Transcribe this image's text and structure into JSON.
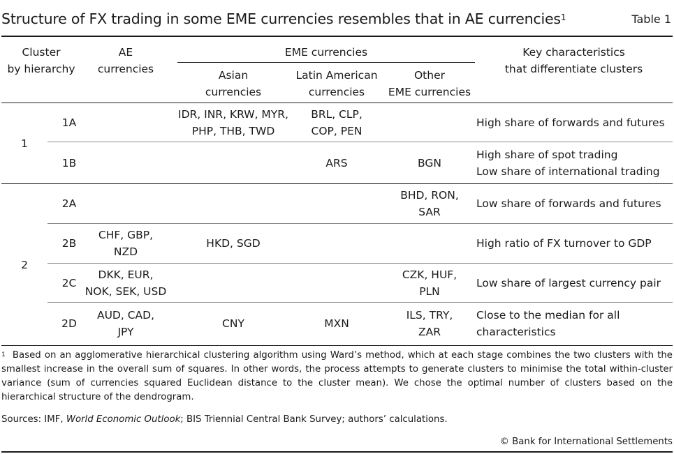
{
  "title": {
    "text": "Structure of FX trading in some EME currencies resembles that in AE currencies",
    "footnote_marker": "1",
    "table_label": "Table 1"
  },
  "headers": {
    "cluster": [
      "Cluster",
      "by hierarchy"
    ],
    "ae": [
      "AE",
      "currencies"
    ],
    "eme_group": "EME currencies",
    "asian": [
      "Asian",
      "currencies"
    ],
    "latam": [
      "Latin American",
      "currencies"
    ],
    "other": [
      "Other",
      "EME currencies"
    ],
    "key": [
      "Key characteristics",
      "that differentiate clusters"
    ]
  },
  "groups": [
    {
      "label": "1"
    },
    {
      "label": "2"
    }
  ],
  "rows": [
    {
      "sub": "1A",
      "ae": [],
      "asian": [
        "IDR, INR, KRW, MYR,",
        "PHP, THB, TWD"
      ],
      "latam": [
        "BRL, CLP,",
        "COP, PEN"
      ],
      "other": [],
      "key": [
        "High share of forwards and futures"
      ]
    },
    {
      "sub": "1B",
      "ae": [],
      "asian": [],
      "latam": [
        "ARS"
      ],
      "other": [
        "BGN"
      ],
      "key": [
        "High share of spot trading",
        "Low share of international trading"
      ]
    },
    {
      "sub": "2A",
      "ae": [],
      "asian": [],
      "latam": [],
      "other": [
        "BHD, RON,",
        "SAR"
      ],
      "key": [
        "Low share of forwards and futures"
      ]
    },
    {
      "sub": "2B",
      "ae": [
        "CHF, GBP,",
        "NZD"
      ],
      "asian": [
        "HKD, SGD"
      ],
      "latam": [],
      "other": [],
      "key": [
        "High ratio of FX turnover to GDP"
      ]
    },
    {
      "sub": "2C",
      "ae": [
        "DKK, EUR,",
        "NOK, SEK, USD"
      ],
      "asian": [],
      "latam": [],
      "other": [
        "CZK, HUF,",
        "PLN"
      ],
      "key": [
        "Low share of largest currency pair"
      ]
    },
    {
      "sub": "2D",
      "ae": [
        "AUD, CAD,",
        "JPY"
      ],
      "asian": [
        "CNY"
      ],
      "latam": [
        "MXN"
      ],
      "other": [
        "ILS, TRY,",
        "ZAR"
      ],
      "key": [
        "Close to the median for all",
        "characteristics"
      ]
    }
  ],
  "footnote": {
    "marker": "1",
    "text": "Based on an agglomerative hierarchical clustering algorithm using Ward’s method, which at each stage combines the two clusters with the smallest increase in the overall sum of squares. In other words, the process attempts to generate clusters to minimise the total within-cluster variance (sum of currencies squared Euclidean distance to the cluster mean). We chose the optimal number of clusters based on the hierarchical structure of the dendrogram."
  },
  "sources": {
    "prefix": "Sources: IMF, ",
    "italic": "World Economic Outlook",
    "suffix": "; BIS Triennial Central Bank Survey; authors’ calculations."
  },
  "copyright": "© Bank for International Settlements"
}
